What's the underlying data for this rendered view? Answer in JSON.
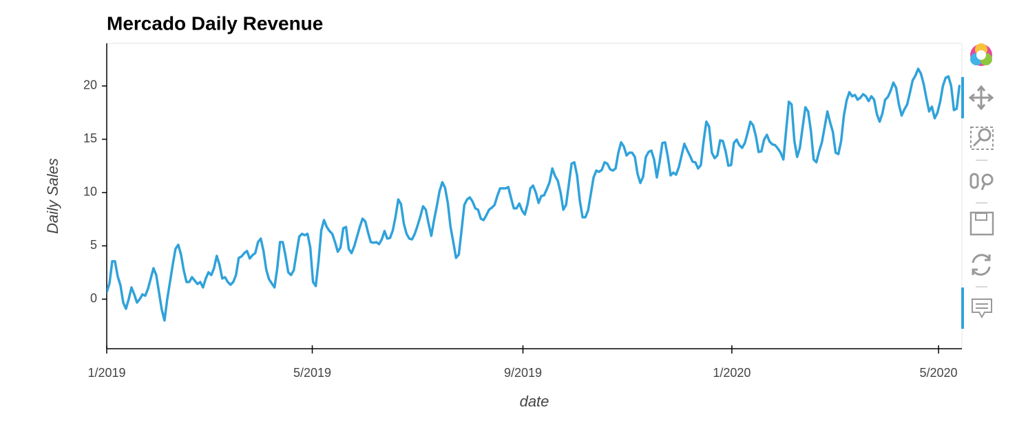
{
  "chart_data": {
    "type": "line",
    "title": "Mercado Daily Revenue",
    "x_label": "date",
    "y_label": "Daily Sales",
    "color": "#30a2da",
    "xlim": [
      2019,
      2020.368
    ],
    "ylim": [
      -4.65,
      24
    ],
    "xticks": [
      {
        "value": 2019,
        "label": "1/2019"
      },
      {
        "value": 2019.3288,
        "label": "5/2019"
      },
      {
        "value": 2019.6658,
        "label": "9/2019"
      },
      {
        "value": 2020,
        "label": "1/2020"
      },
      {
        "value": 2020.3306,
        "label": "5/2020"
      }
    ],
    "yticks": [
      0,
      5,
      10,
      15,
      20
    ],
    "x": [
      2019,
      2019.0044,
      2019.0088,
      2019.0132,
      2019.0176,
      2019.022,
      2019.0264,
      2019.0308,
      2019.0352,
      2019.0396,
      2019.044,
      2019.0484,
      2019.0528,
      2019.0572,
      2019.0616,
      2019.066,
      2019.0704,
      2019.0748,
      2019.0792,
      2019.0836,
      2019.088,
      2019.0924,
      2019.0968,
      2019.1012,
      2019.1056,
      2019.11,
      2019.1144,
      2019.1188,
      2019.1232,
      2019.1276,
      2019.132,
      2019.1364,
      2019.1408,
      2019.1452,
      2019.1496,
      2019.154,
      2019.1584,
      2019.1628,
      2019.1672,
      2019.1716,
      2019.176,
      2019.1804,
      2019.1848,
      2019.1892,
      2019.1936,
      2019.198,
      2019.2024,
      2019.2068,
      2019.2112,
      2019.2156,
      2019.22,
      2019.2244,
      2019.2288,
      2019.2332,
      2019.2376,
      2019.242,
      2019.2464,
      2019.2508,
      2019.2552,
      2019.2596,
      2019.264,
      2019.2684,
      2019.2728,
      2019.2772,
      2019.2816,
      2019.286,
      2019.2904,
      2019.2948,
      2019.2992,
      2019.3036,
      2019.308,
      2019.3124,
      2019.3168,
      2019.3212,
      2019.3256,
      2019.33,
      2019.3344,
      2019.3388,
      2019.3432,
      2019.3476,
      2019.352,
      2019.3564,
      2019.3608,
      2019.3652,
      2019.3696,
      2019.374,
      2019.3784,
      2019.3828,
      2019.3872,
      2019.3916,
      2019.396,
      2019.4004,
      2019.4048,
      2019.4092,
      2019.4136,
      2019.418,
      2019.4224,
      2019.4268,
      2019.4312,
      2019.4356,
      2019.44,
      2019.4444,
      2019.4488,
      2019.4532,
      2019.4576,
      2019.462,
      2019.4664,
      2019.4708,
      2019.4752,
      2019.4796,
      2019.484,
      2019.4884,
      2019.4928,
      2019.4972,
      2019.5016,
      2019.506,
      2019.5104,
      2019.5148,
      2019.5192,
      2019.5236,
      2019.528,
      2019.5324,
      2019.5368,
      2019.5412,
      2019.5456,
      2019.55,
      2019.5544,
      2019.5588,
      2019.5632,
      2019.5676,
      2019.572,
      2019.5764,
      2019.5808,
      2019.5852,
      2019.5896,
      2019.594,
      2019.5984,
      2019.6028,
      2019.6072,
      2019.6116,
      2019.616,
      2019.6204,
      2019.6248,
      2019.6292,
      2019.6336,
      2019.638,
      2019.6424,
      2019.6468,
      2019.6512,
      2019.6556,
      2019.66,
      2019.6644,
      2019.6688,
      2019.6732,
      2019.6776,
      2019.682,
      2019.6864,
      2019.6908,
      2019.6952,
      2019.6996,
      2019.704,
      2019.7084,
      2019.7128,
      2019.7172,
      2019.7216,
      2019.726,
      2019.7304,
      2019.7348,
      2019.7392,
      2019.7436,
      2019.748,
      2019.7524,
      2019.7568,
      2019.7612,
      2019.7656,
      2019.77,
      2019.7744,
      2019.7788,
      2019.7832,
      2019.7876,
      2019.792,
      2019.7964,
      2019.8008,
      2019.8052,
      2019.8096,
      2019.814,
      2019.8184,
      2019.8228,
      2019.8272,
      2019.8316,
      2019.836,
      2019.8404,
      2019.8448,
      2019.8492,
      2019.8536,
      2019.858,
      2019.8624,
      2019.8668,
      2019.8712,
      2019.8756,
      2019.88,
      2019.8844,
      2019.8888,
      2019.8932,
      2019.8976,
      2019.902,
      2019.9064,
      2019.9108,
      2019.9152,
      2019.9196,
      2019.924,
      2019.9284,
      2019.9328,
      2019.9372,
      2019.9416,
      2019.946,
      2019.9504,
      2019.9548,
      2019.9592,
      2019.9636,
      2019.968,
      2019.9724,
      2019.9768,
      2019.9812,
      2019.9856,
      2019.99,
      2019.9944,
      2019.9988,
      2020.0032,
      2020.0076,
      2020.012,
      2020.0164,
      2020.0208,
      2020.0252,
      2020.0296,
      2020.034,
      2020.0384,
      2020.0428,
      2020.0472,
      2020.0516,
      2020.056,
      2020.0604,
      2020.0648,
      2020.0692,
      2020.0736,
      2020.078,
      2020.0824,
      2020.0868,
      2020.0912,
      2020.0956,
      2020.1,
      2020.1044,
      2020.1088,
      2020.1132,
      2020.1176,
      2020.122,
      2020.1264,
      2020.1308,
      2020.1352,
      2020.1396,
      2020.144,
      2020.1484,
      2020.1528,
      2020.1572,
      2020.1616,
      2020.166,
      2020.1704,
      2020.1748,
      2020.1792,
      2020.1836,
      2020.188,
      2020.1924,
      2020.1968,
      2020.2012,
      2020.2056,
      2020.21,
      2020.2144,
      2020.2188,
      2020.2232,
      2020.2276,
      2020.232,
      2020.2364,
      2020.2408,
      2020.2452,
      2020.2496,
      2020.254,
      2020.2584,
      2020.2628,
      2020.2672,
      2020.2716,
      2020.276,
      2020.2804,
      2020.2848,
      2020.2892,
      2020.2936,
      2020.298,
      2020.3024,
      2020.3068,
      2020.3112,
      2020.3156,
      2020.32,
      2020.3244,
      2020.3288,
      2020.3332,
      2020.3376,
      2020.342,
      2020.3464,
      2020.3508,
      2020.3552,
      2020.3596,
      2020.364
    ],
    "values": [
      0.65,
      1.48,
      3.55,
      3.55,
      2.13,
      1.29,
      -0.32,
      -0.9,
      0,
      1.1,
      0.45,
      -0.32,
      0,
      0.45,
      0.32,
      0.97,
      1.94,
      2.9,
      2.26,
      0.65,
      -0.97,
      -2.0,
      0,
      1.61,
      3.23,
      4.71,
      5.1,
      4.19,
      2.71,
      1.61,
      1.61,
      2.06,
      1.74,
      1.42,
      1.61,
      1.1,
      1.94,
      2.52,
      2.26,
      2.9,
      4.06,
      3.23,
      1.94,
      2.06,
      1.61,
      1.35,
      1.61,
      2.26,
      3.87,
      4.0,
      4.32,
      4.52,
      3.81,
      4.13,
      4.32,
      5.35,
      5.68,
      4.52,
      2.77,
      1.87,
      1.48,
      1.1,
      2.9,
      5.35,
      5.35,
      4.06,
      2.52,
      2.26,
      2.71,
      4.32,
      5.87,
      6.13,
      6.0,
      6.13,
      4.84,
      1.61,
      1.23,
      3.55,
      6.45,
      7.42,
      6.77,
      6.39,
      6.13,
      5.35,
      4.45,
      4.84,
      6.65,
      6.77,
      4.71,
      4.32,
      4.97,
      5.87,
      6.77,
      7.55,
      7.29,
      6.26,
      5.35,
      5.29,
      5.35,
      5.16,
      5.61,
      6.39,
      5.68,
      5.74,
      6.45,
      7.74,
      9.35,
      8.9,
      7.1,
      6.13,
      5.68,
      5.61,
      6.13,
      6.9,
      7.74,
      8.71,
      8.39,
      7.1,
      5.94,
      7.42,
      8.71,
      10.13,
      10.97,
      10.45,
      9.03,
      6.77,
      5.35,
      3.87,
      4.19,
      6.45,
      8.84,
      9.35,
      9.55,
      9.16,
      8.52,
      8.39,
      7.55,
      7.42,
      7.87,
      8.39,
      8.58,
      8.84,
      9.68,
      10.39,
      10.39,
      10.39,
      10.52,
      9.48,
      8.52,
      8.52,
      8.97,
      8.32,
      7.94,
      8.9,
      10.39,
      10.65,
      10.0,
      9.03,
      9.68,
      9.74,
      10.32,
      10.97,
      12.26,
      11.55,
      11.1,
      10.0,
      8.39,
      8.84,
      10.77,
      12.71,
      12.84,
      11.61,
      9.23,
      7.68,
      7.68,
      8.32,
      9.87,
      11.42,
      12.06,
      11.94,
      12.13,
      12.84,
      12.71,
      12.19,
      12.06,
      12.26,
      13.74,
      14.71,
      14.32,
      13.48,
      13.74,
      13.74,
      13.35,
      11.74,
      10.9,
      11.48,
      13.35,
      13.81,
      13.94,
      13.1,
      11.42,
      12.84,
      14.65,
      14.71,
      13.35,
      11.61,
      11.87,
      11.68,
      12.39,
      13.48,
      14.58,
      14.0,
      13.48,
      12.9,
      12.84,
      12.26,
      12.58,
      14.84,
      16.65,
      16.19,
      13.74,
      13.23,
      13.48,
      14.9,
      14.84,
      13.87,
      12.52,
      12.58,
      14.65,
      14.97,
      14.45,
      14.19,
      14.65,
      15.61,
      16.65,
      16.32,
      15.29,
      13.81,
      13.87,
      14.97,
      15.42,
      14.77,
      14.52,
      14.45,
      14.13,
      13.74,
      13.1,
      15.81,
      18.52,
      18.26,
      14.84,
      13.35,
      14.19,
      16.13,
      18.0,
      17.61,
      15.81,
      13.1,
      12.84,
      13.87,
      14.71,
      16.13,
      17.61,
      16.58,
      15.68,
      13.74,
      13.61,
      14.84,
      17.23,
      18.65,
      19.42,
      19.03,
      19.16,
      18.71,
      18.9,
      19.23,
      19.03,
      18.58,
      19.03,
      18.71,
      17.35,
      16.65,
      17.42,
      18.71,
      18.97,
      19.55,
      20.32,
      19.81,
      18.26,
      17.23,
      17.81,
      18.26,
      19.35,
      20.52,
      20.97,
      21.61,
      21.16,
      20.19,
      18.84,
      17.61,
      18.06,
      16.97,
      17.48,
      18.52,
      20.0,
      20.77,
      20.9,
      20.0,
      17.74,
      17.87,
      20.0
    ]
  }
}
